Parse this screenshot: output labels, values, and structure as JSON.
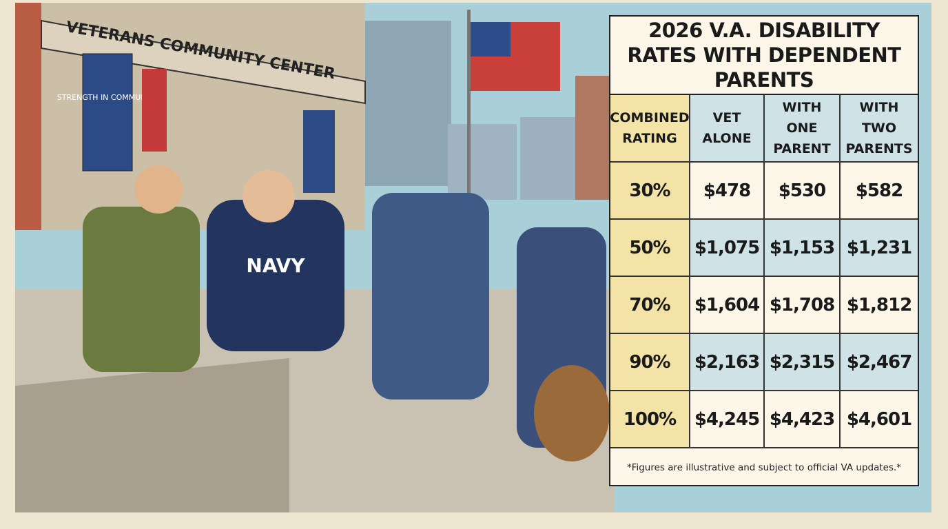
{
  "scene": {
    "sign": "VETERANS COMMUNITY CENTER",
    "banner": "STRENGTH IN COMMUNITY",
    "hoodie": "NAVY"
  },
  "table": {
    "title": "2026 V.A. DISABILITY RATES WITH DEPENDENT PARENTS",
    "header": [
      "COMBINED RATING",
      "VET ALONE",
      "WITH ONE PARENT",
      "WITH TWO PARENTS"
    ],
    "rows": [
      [
        "30%",
        "$478",
        "$530",
        "$582"
      ],
      [
        "50%",
        "$1,075",
        "$1,153",
        "$1,231"
      ],
      [
        "70%",
        "$1,604",
        "$1,708",
        "$1,812"
      ],
      [
        "90%",
        "$2,163",
        "$2,315",
        "$2,467"
      ],
      [
        "100%",
        "$4,245",
        "$4,423",
        "$4,601"
      ]
    ],
    "footnote": "*Figures are illustrative and subject to official VA updates.*"
  }
}
